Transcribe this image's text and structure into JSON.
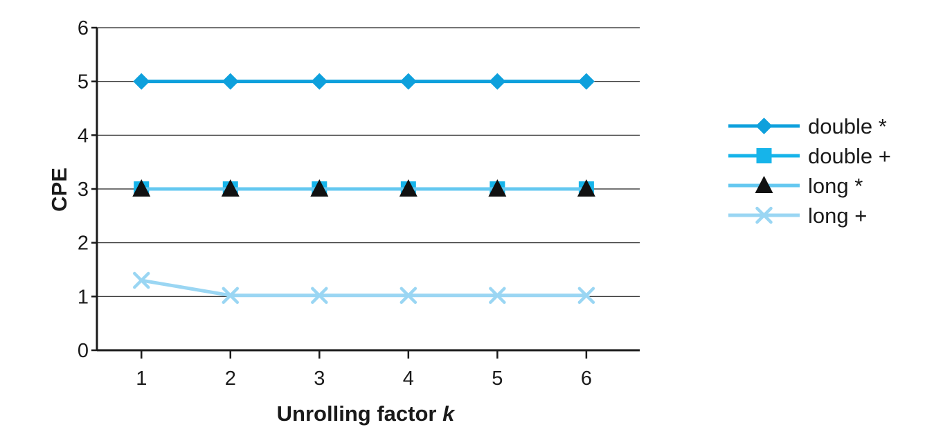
{
  "chart_data": {
    "type": "line",
    "xlabel": "Unrolling factor",
    "xlabel_var": "k",
    "ylabel": "CPE",
    "x": [
      1,
      2,
      3,
      4,
      5,
      6
    ],
    "x_ticks": [
      "1",
      "2",
      "3",
      "4",
      "5",
      "6"
    ],
    "y_ticks": [
      "0",
      "1",
      "2",
      "3",
      "4",
      "5",
      "6"
    ],
    "ylim": [
      0,
      6
    ],
    "grid": "horizontal",
    "legend_position": "right",
    "series": [
      {
        "name": "double *",
        "values": [
          5,
          5,
          5,
          5,
          5,
          5
        ],
        "marker": "diamond",
        "color": "#0ea0dc"
      },
      {
        "name": "double +",
        "values": [
          3,
          3,
          3,
          3,
          3,
          3
        ],
        "marker": "square",
        "color": "#16b4ea"
      },
      {
        "name": "long *",
        "values": [
          3,
          3,
          3,
          3,
          3,
          3
        ],
        "marker": "triangle",
        "color": "#64c8f0"
      },
      {
        "name": "long +",
        "values": [
          1.3,
          1.02,
          1.02,
          1.02,
          1.02,
          1.02
        ],
        "marker": "cross",
        "color": "#9ad6f3"
      }
    ]
  }
}
